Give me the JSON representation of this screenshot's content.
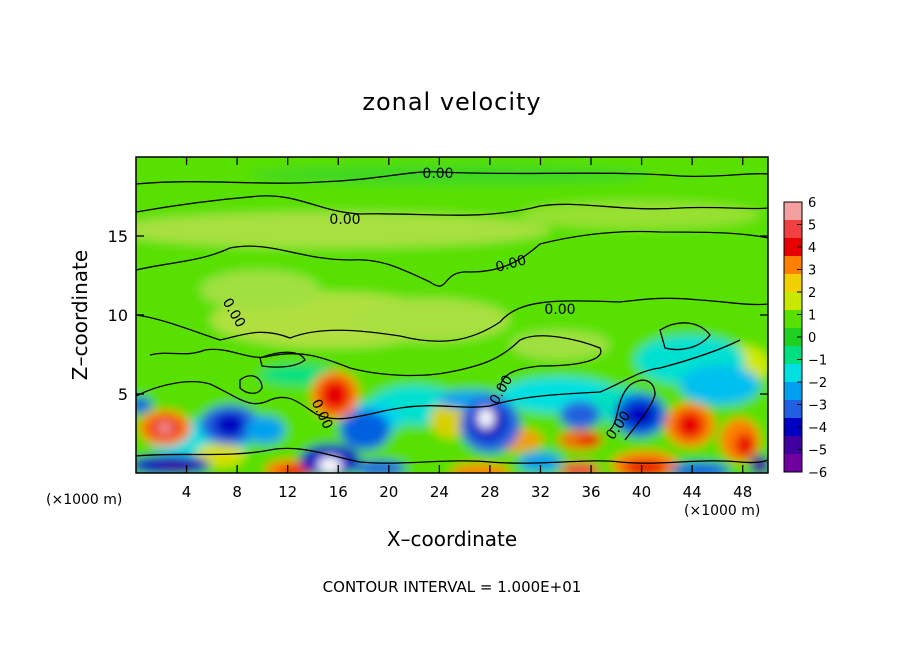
{
  "chart_data": {
    "type": "heatmap",
    "title": "zonal velocity",
    "xlabel": "X–coordinate",
    "ylabel": "Z–coordinate",
    "x_unit": "(×1000 m)",
    "xlim": [
      0,
      50
    ],
    "ylim": [
      0,
      20
    ],
    "x_ticks": [
      4,
      8,
      12,
      16,
      20,
      24,
      28,
      32,
      36,
      40,
      44,
      48
    ],
    "y_ticks": [
      5,
      10,
      15
    ],
    "colorbar": {
      "ticks": [
        6,
        5,
        4,
        3,
        2,
        1,
        0,
        -1,
        -2,
        -3,
        -4,
        -5,
        -6
      ],
      "colors": [
        "#f2a0a0",
        "#f04040",
        "#e80000",
        "#ff8000",
        "#f0d000",
        "#c8e800",
        "#58e000",
        "#20d020",
        "#00e080",
        "#00e0e0",
        "#00a0f0",
        "#2060e0",
        "#0000c0",
        "#4000a0",
        "#7000a0"
      ]
    },
    "contour_labels": [
      "0.00",
      "0.00",
      "0.00",
      "0.00",
      "0.00",
      "0.00",
      "0.00",
      "0.00"
    ],
    "contour_interval_text": "CONTOUR INTERVAL = 1.000E+01"
  }
}
